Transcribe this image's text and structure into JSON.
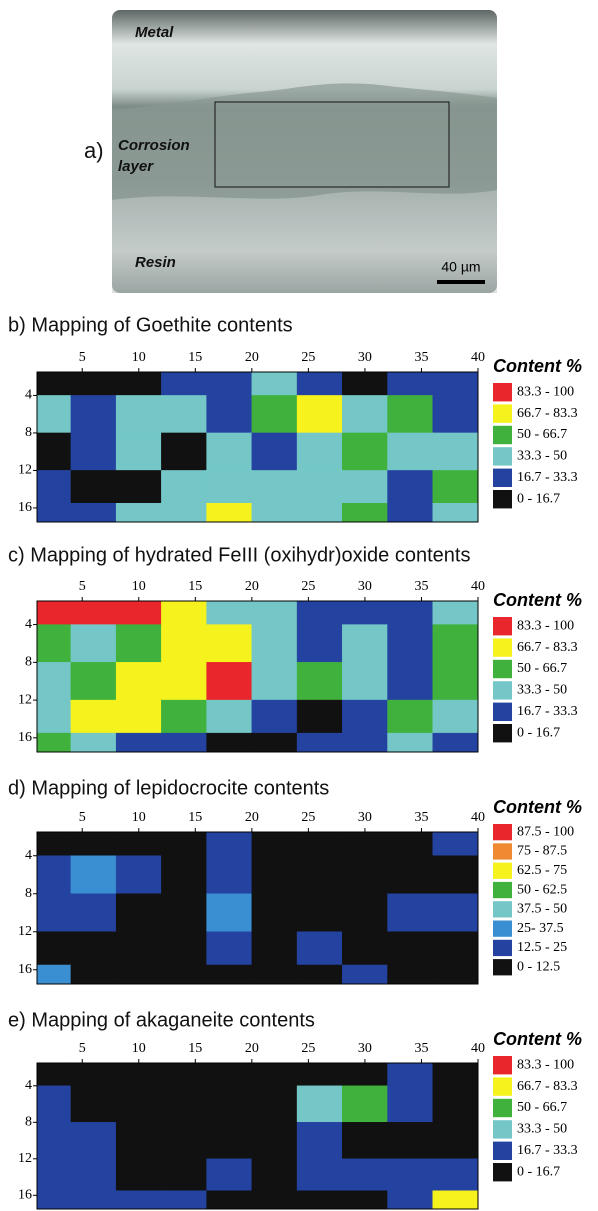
{
  "image_panel": {
    "label": "a)",
    "metal": "Metal",
    "corrosion_line1": "Corrosion",
    "corrosion_line2": "layer",
    "resin": "Resin",
    "scale_bar": "40 µm"
  },
  "chart_data": [
    {
      "type": "heatmap",
      "title": "b) Mapping of Goethite contents",
      "legend_title": "Content %",
      "legend": [
        {
          "label": "83.3 - 100",
          "min": 83.3,
          "max": 100,
          "color": "#e8262b"
        },
        {
          "label": "66.7 - 83.3",
          "min": 66.7,
          "max": 83.3,
          "color": "#f5f21e"
        },
        {
          "label": "50 - 66.7",
          "min": 50,
          "max": 66.7,
          "color": "#3fb13c"
        },
        {
          "label": "33.3 - 50",
          "min": 33.3,
          "max": 50,
          "color": "#74c7c6"
        },
        {
          "label": "16.7 - 33.3",
          "min": 16.7,
          "max": 33.3,
          "color": "#2443a0"
        },
        {
          "label": "0 - 16.7",
          "min": 0,
          "max": 16.7,
          "color": "#111111"
        }
      ],
      "x": [
        2,
        6,
        10,
        14,
        18,
        22,
        26,
        30,
        34,
        38
      ],
      "y": [
        2,
        6,
        10,
        14,
        17
      ],
      "z": [
        [
          8,
          8,
          8,
          25,
          25,
          40,
          25,
          8,
          25,
          25
        ],
        [
          40,
          25,
          40,
          40,
          25,
          60,
          75,
          40,
          60,
          25
        ],
        [
          8,
          25,
          40,
          8,
          40,
          25,
          40,
          60,
          40,
          40
        ],
        [
          25,
          8,
          8,
          40,
          40,
          40,
          40,
          40,
          25,
          60
        ],
        [
          25,
          25,
          40,
          40,
          75,
          40,
          40,
          60,
          25,
          40
        ]
      ],
      "xlim": [
        1,
        40
      ],
      "ylim": [
        1.5,
        17.5
      ],
      "xticks": [
        5,
        10,
        15,
        20,
        25,
        30,
        35,
        40
      ],
      "yticks": [
        4,
        8,
        12,
        16
      ]
    },
    {
      "type": "heatmap",
      "title": "c) Mapping of hydrated FeIII (oxihydr)oxide contents",
      "legend_title": "Content %",
      "legend": [
        {
          "label": "83.3 - 100",
          "min": 83.3,
          "max": 100,
          "color": "#e8262b"
        },
        {
          "label": "66.7 - 83.3",
          "min": 66.7,
          "max": 83.3,
          "color": "#f5f21e"
        },
        {
          "label": "50 - 66.7",
          "min": 50,
          "max": 66.7,
          "color": "#3fb13c"
        },
        {
          "label": "33.3 - 50",
          "min": 33.3,
          "max": 50,
          "color": "#74c7c6"
        },
        {
          "label": "16.7 - 33.3",
          "min": 16.7,
          "max": 33.3,
          "color": "#2443a0"
        },
        {
          "label": "0 - 16.7",
          "min": 0,
          "max": 16.7,
          "color": "#111111"
        }
      ],
      "x": [
        2,
        6,
        10,
        14,
        18,
        22,
        26,
        30,
        34,
        38
      ],
      "y": [
        2,
        6,
        10,
        14,
        17
      ],
      "z": [
        [
          90,
          90,
          90,
          75,
          40,
          40,
          25,
          25,
          25,
          40
        ],
        [
          60,
          40,
          60,
          75,
          75,
          40,
          25,
          40,
          25,
          60
        ],
        [
          40,
          60,
          75,
          75,
          90,
          40,
          60,
          40,
          25,
          60
        ],
        [
          40,
          75,
          75,
          60,
          40,
          25,
          8,
          25,
          60,
          40
        ],
        [
          60,
          40,
          25,
          25,
          8,
          8,
          25,
          25,
          40,
          25
        ]
      ],
      "xlim": [
        1,
        40
      ],
      "ylim": [
        1.5,
        17.5
      ],
      "xticks": [
        5,
        10,
        15,
        20,
        25,
        30,
        35,
        40
      ],
      "yticks": [
        4,
        8,
        12,
        16
      ]
    },
    {
      "type": "heatmap",
      "title": "d) Mapping of lepidocrocite contents",
      "legend_title": "Content %",
      "legend": [
        {
          "label": "87.5 - 100",
          "min": 87.5,
          "max": 100,
          "color": "#e8262b"
        },
        {
          "label": "75 - 87.5",
          "min": 75,
          "max": 87.5,
          "color": "#f08a32"
        },
        {
          "label": "62.5 - 75",
          "min": 62.5,
          "max": 75,
          "color": "#f5f21e"
        },
        {
          "label": "50 - 62.5",
          "min": 50,
          "max": 62.5,
          "color": "#3fb13c"
        },
        {
          "label": "37.5 - 50",
          "min": 37.5,
          "max": 50,
          "color": "#74c7c6"
        },
        {
          "label": "25- 37.5",
          "min": 25,
          "max": 37.5,
          "color": "#3a8fd2"
        },
        {
          "label": "12.5 - 25",
          "min": 12.5,
          "max": 25,
          "color": "#2443a0"
        },
        {
          "label": "0 - 12.5",
          "min": 0,
          "max": 12.5,
          "color": "#111111"
        }
      ],
      "x": [
        2,
        6,
        10,
        14,
        18,
        22,
        26,
        30,
        34,
        38
      ],
      "y": [
        2,
        6,
        10,
        14,
        17
      ],
      "z": [
        [
          6,
          6,
          6,
          6,
          19,
          6,
          6,
          6,
          6,
          19
        ],
        [
          19,
          31,
          19,
          6,
          19,
          6,
          6,
          6,
          6,
          6
        ],
        [
          19,
          19,
          6,
          6,
          31,
          6,
          6,
          6,
          19,
          19
        ],
        [
          6,
          6,
          6,
          6,
          19,
          6,
          19,
          6,
          6,
          6
        ],
        [
          31,
          6,
          6,
          6,
          6,
          6,
          6,
          19,
          6,
          6
        ]
      ],
      "xlim": [
        1,
        40
      ],
      "ylim": [
        1.5,
        17.5
      ],
      "xticks": [
        5,
        10,
        15,
        20,
        25,
        30,
        35,
        40
      ],
      "yticks": [
        4,
        8,
        12,
        16
      ]
    },
    {
      "type": "heatmap",
      "title": "e) Mapping of akaganeite contents",
      "legend_title": "Content %",
      "legend": [
        {
          "label": "83.3 - 100",
          "min": 83.3,
          "max": 100,
          "color": "#e8262b"
        },
        {
          "label": "66.7 - 83.3",
          "min": 66.7,
          "max": 83.3,
          "color": "#f5f21e"
        },
        {
          "label": "50 - 66.7",
          "min": 50,
          "max": 66.7,
          "color": "#3fb13c"
        },
        {
          "label": "33.3 - 50",
          "min": 33.3,
          "max": 50,
          "color": "#74c7c6"
        },
        {
          "label": "16.7 - 33.3",
          "min": 16.7,
          "max": 33.3,
          "color": "#2443a0"
        },
        {
          "label": "0 - 16.7",
          "min": 0,
          "max": 16.7,
          "color": "#111111"
        }
      ],
      "x": [
        2,
        6,
        10,
        14,
        18,
        22,
        26,
        30,
        34,
        38
      ],
      "y": [
        2,
        6,
        10,
        14,
        17
      ],
      "z": [
        [
          6,
          6,
          6,
          6,
          6,
          6,
          6,
          6,
          19,
          6
        ],
        [
          19,
          6,
          6,
          6,
          6,
          6,
          40,
          60,
          19,
          6
        ],
        [
          19,
          31,
          6,
          6,
          6,
          6,
          19,
          6,
          6,
          6
        ],
        [
          31,
          19,
          6,
          6,
          19,
          6,
          19,
          19,
          19,
          19
        ],
        [
          19,
          31,
          19,
          31,
          6,
          6,
          6,
          6,
          19,
          75
        ]
      ],
      "xlim": [
        1,
        40
      ],
      "ylim": [
        1.5,
        17.5
      ],
      "xticks": [
        5,
        10,
        15,
        20,
        25,
        30,
        35,
        40
      ],
      "yticks": [
        4,
        8,
        12,
        16
      ]
    }
  ]
}
